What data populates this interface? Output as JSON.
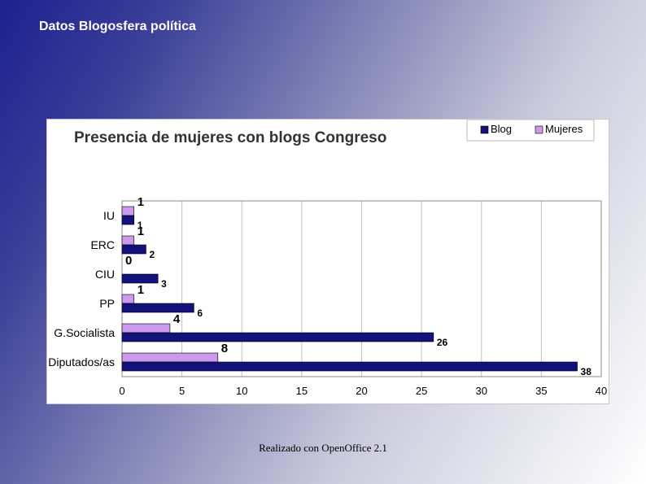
{
  "slide": {
    "title": "Datos Blogosfera política",
    "footer": "Realizado con OpenOffice 2.1"
  },
  "chart_data": {
    "type": "bar",
    "orientation": "horizontal",
    "title": "Presencia de mujeres con blogs Congreso",
    "categories": [
      "IU",
      "ERC",
      "CIU",
      "PP",
      "G.Socialista",
      "Diputados/as"
    ],
    "series": [
      {
        "name": "Blog",
        "values": [
          1,
          2,
          3,
          6,
          26,
          38
        ],
        "color": "#12127a"
      },
      {
        "name": "Mujeres",
        "values": [
          1,
          1,
          0,
          1,
          4,
          8
        ],
        "color": "#cc99ee"
      }
    ],
    "xlim": [
      0,
      40
    ],
    "xticks": [
      0,
      5,
      10,
      15,
      20,
      25,
      30,
      35,
      40
    ],
    "grid": true,
    "legend_position": "top-right"
  }
}
